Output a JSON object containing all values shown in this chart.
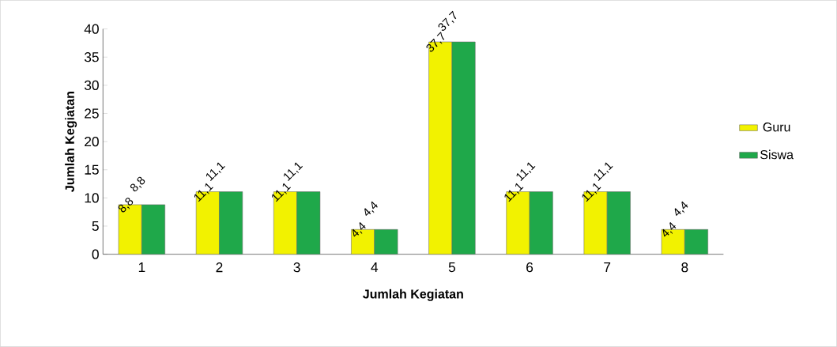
{
  "chart_data": {
    "type": "bar",
    "xlabel": "Jumlah Kegiatan",
    "ylabel": "Jumlah Kegiatan",
    "categories": [
      "1",
      "2",
      "3",
      "4",
      "5",
      "6",
      "7",
      "8"
    ],
    "series": [
      {
        "name": "Guru",
        "color": "#f2f200",
        "values": [
          8.8,
          11.1,
          11.1,
          4.4,
          37.7,
          11.1,
          11.1,
          4.4
        ],
        "value_labels": [
          "8,8",
          "11,1",
          "11,1",
          "4,4",
          "37,7",
          "11,1",
          "11,1",
          "4,4"
        ]
      },
      {
        "name": "Siswa",
        "color": "#1fa84a",
        "values": [
          8.8,
          11.1,
          11.1,
          4.4,
          37.7,
          11.1,
          11.1,
          4.4
        ],
        "value_labels": [
          "8,8",
          "11,1",
          "11,1",
          "4,4",
          "37,7",
          "11,1",
          "11,1",
          "4,4"
        ]
      }
    ],
    "ylim": [
      0,
      40
    ],
    "yticks": [
      0,
      5,
      10,
      15,
      20,
      25,
      30,
      35,
      40
    ],
    "legend": "right"
  }
}
